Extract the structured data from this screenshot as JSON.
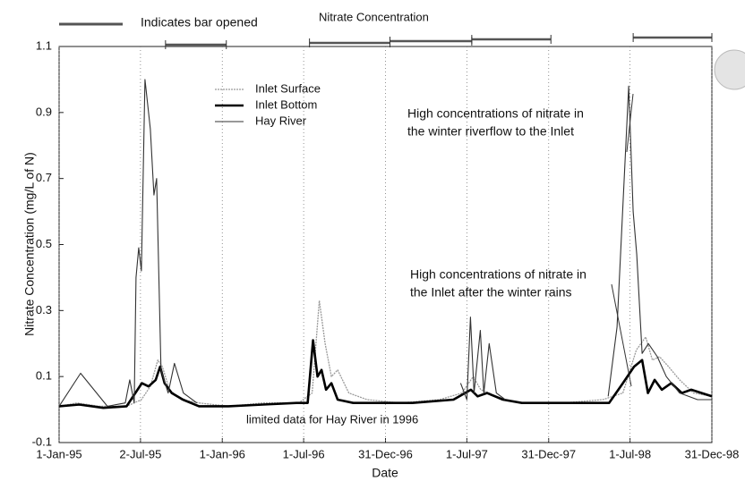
{
  "chart_data": {
    "type": "line",
    "title": "Nitrate Concentration",
    "y_label": "Nitrate Concentration (mg/L of N)",
    "x_label": "Date",
    "xlim": [
      "1995-01-01",
      "1998-12-31"
    ],
    "xticks": [
      {
        "value": "1995-01-01",
        "label": "1-Jan-95"
      },
      {
        "value": "1995-07-02",
        "label": "2-Jul-95"
      },
      {
        "value": "1996-01-01",
        "label": "1-Jan-96"
      },
      {
        "value": "1996-07-01",
        "label": "1-Jul-96"
      },
      {
        "value": "1996-12-31",
        "label": "31-Dec-96"
      },
      {
        "value": "1997-07-01",
        "label": "1-Jul-97"
      },
      {
        "value": "1997-12-31",
        "label": "31-Dec-97"
      },
      {
        "value": "1998-07-01",
        "label": "1-Jul-98"
      },
      {
        "value": "1998-12-31",
        "label": "31-Dec-98"
      }
    ],
    "ylim": [
      -0.1,
      1.1
    ],
    "yticks": [
      -0.1,
      0.1,
      0.3,
      0.5,
      0.7,
      0.9,
      1.1
    ],
    "x_grid": true,
    "bar_opened": {
      "label": "Indicates bar opened",
      "periods": [
        {
          "start": "1995-08-27",
          "end": "1996-01-10"
        },
        {
          "start": "1996-07-14",
          "end": "1997-01-10"
        },
        {
          "start": "1997-01-10",
          "end": "1997-07-12"
        },
        {
          "start": "1997-07-12",
          "end": "1998-01-05"
        },
        {
          "start": "1998-07-08",
          "end": "1998-12-31"
        }
      ]
    },
    "series": [
      {
        "name": "Inlet Surface",
        "color": "#9a9a9a",
        "width": 1.3,
        "dash": "2 1",
        "x": [
          "1995-01-01",
          "1995-02-10",
          "1995-04-01",
          "1995-06-01",
          "1995-07-04",
          "1995-07-24",
          "1995-08-10",
          "1995-08-20",
          "1995-09-05",
          "1995-10-01",
          "1995-11-10",
          "1996-01-15",
          "1996-04-01",
          "1996-06-20",
          "1996-07-20",
          "1996-08-05",
          "1996-08-18",
          "1996-09-01",
          "1996-09-15",
          "1996-10-10",
          "1996-11-20",
          "1997-02-01",
          "1997-05-01",
          "1997-06-20",
          "1997-07-15",
          "1997-08-01",
          "1997-08-20",
          "1997-09-15",
          "1997-11-01",
          "1998-02-01",
          "1998-05-01",
          "1998-06-15",
          "1998-07-15",
          "1998-08-05",
          "1998-08-20",
          "1998-09-05",
          "1998-09-25",
          "1998-10-20",
          "1998-11-20",
          "1998-12-31"
        ],
        "values": [
          0.01,
          0.02,
          0.01,
          0.01,
          0.03,
          0.07,
          0.15,
          0.13,
          0.06,
          0.03,
          0.02,
          0.01,
          0.02,
          0.02,
          0.05,
          0.33,
          0.2,
          0.1,
          0.12,
          0.05,
          0.03,
          0.02,
          0.03,
          0.05,
          0.1,
          0.06,
          0.05,
          0.03,
          0.02,
          0.02,
          0.03,
          0.05,
          0.18,
          0.22,
          0.15,
          0.16,
          0.13,
          0.09,
          0.05,
          0.04
        ]
      },
      {
        "name": "Inlet Bottom",
        "color": "#000000",
        "width": 2.6,
        "dash": "",
        "x": [
          "1995-01-01",
          "1995-02-15",
          "1995-04-10",
          "1995-06-01",
          "1995-07-05",
          "1995-07-20",
          "1995-08-05",
          "1995-08-15",
          "1995-08-25",
          "1995-09-10",
          "1995-10-05",
          "1995-11-10",
          "1996-01-15",
          "1996-04-01",
          "1996-06-15",
          "1996-07-10",
          "1996-07-22",
          "1996-08-01",
          "1996-08-10",
          "1996-08-20",
          "1996-09-01",
          "1996-09-15",
          "1996-10-20",
          "1996-12-01",
          "1997-03-01",
          "1997-06-01",
          "1997-07-10",
          "1997-07-25",
          "1997-08-15",
          "1997-09-20",
          "1997-11-01",
          "1998-02-01",
          "1998-05-15",
          "1998-06-15",
          "1998-07-10",
          "1998-07-28",
          "1998-08-10",
          "1998-08-25",
          "1998-09-10",
          "1998-10-01",
          "1998-10-25",
          "1998-11-15",
          "1998-12-31"
        ],
        "values": [
          0.01,
          0.015,
          0.005,
          0.01,
          0.08,
          0.07,
          0.09,
          0.13,
          0.08,
          0.05,
          0.03,
          0.01,
          0.01,
          0.015,
          0.02,
          0.02,
          0.21,
          0.1,
          0.12,
          0.06,
          0.08,
          0.03,
          0.02,
          0.02,
          0.02,
          0.03,
          0.06,
          0.04,
          0.05,
          0.03,
          0.02,
          0.02,
          0.02,
          0.08,
          0.13,
          0.15,
          0.05,
          0.09,
          0.06,
          0.08,
          0.05,
          0.06,
          0.04
        ]
      },
      {
        "name": "Hay River",
        "color": "#333333",
        "width": 1.1,
        "dash": "",
        "x": [
          "1995-01-01",
          "1995-02-18",
          "1995-04-19",
          "1995-05-29",
          "1995-06-08",
          "1995-06-18",
          "1995-06-22",
          "1995-06-28",
          "1995-07-04",
          "1995-07-12",
          "1995-07-24",
          "1995-08-01",
          "1995-08-07",
          "1995-08-17",
          "1995-09-02",
          "1995-09-16",
          "1995-10-06",
          "1995-11-05",
          null,
          "1997-06-17",
          "1997-07-01",
          "1997-07-09",
          "1997-07-17",
          "1997-07-31",
          "1997-08-08",
          "1997-08-20",
          "1997-09-05",
          "1997-09-25",
          null,
          "1998-05-13",
          "1998-06-02",
          "1998-06-28",
          "1998-07-08",
          "1998-07-16",
          "1998-07-28",
          "1998-08-11",
          "1998-08-31",
          "1998-09-20",
          "1998-10-20",
          "1998-11-29",
          "1998-12-31"
        ],
        "values": [
          0.01,
          0.11,
          0.01,
          0.02,
          0.09,
          0.02,
          0.4,
          0.49,
          0.42,
          1.0,
          0.85,
          0.65,
          0.7,
          0.12,
          0.05,
          0.14,
          0.05,
          0.02,
          null,
          0.08,
          0.03,
          0.28,
          0.05,
          0.24,
          0.05,
          0.2,
          0.05,
          0.03,
          null,
          0.04,
          0.25,
          0.98,
          0.6,
          0.47,
          0.17,
          0.2,
          0.16,
          0.1,
          0.05,
          0.03,
          0.03
        ]
      }
    ],
    "annotations": [
      {
        "lines": [
          "High concentrations of nitrate in",
          "the winter riverflow to the Inlet"
        ]
      },
      {
        "lines": [
          "High concentrations of nitrate in",
          "the Inlet after the winter rains"
        ]
      },
      {
        "lines": [
          "limited data for Hay River in 1996"
        ]
      }
    ]
  }
}
